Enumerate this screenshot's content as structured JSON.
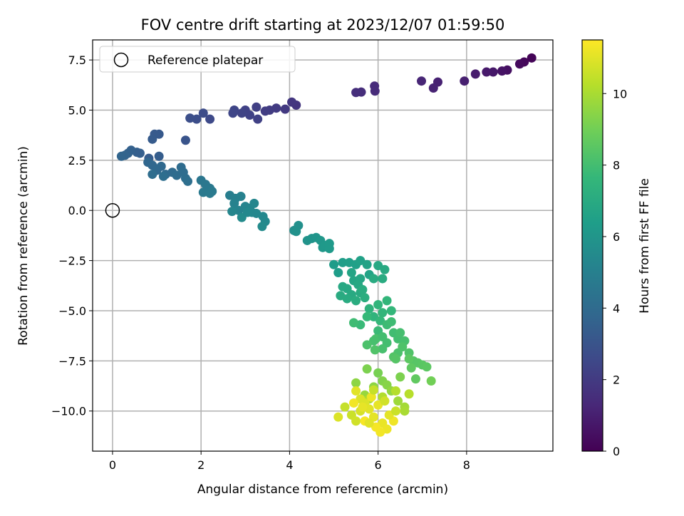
{
  "chart_data": {
    "type": "scatter",
    "title": "FOV centre drift starting at 2023/12/07 01:59:50",
    "xlabel": "Angular distance from reference (arcmin)",
    "ylabel": "Rotation from reference (arcmin)",
    "xlim": [
      -0.45,
      9.95
    ],
    "ylim": [
      -12.0,
      8.5
    ],
    "xticks": [
      0,
      2,
      4,
      6,
      8
    ],
    "xtick_labels": [
      "0",
      "2",
      "4",
      "6",
      "8"
    ],
    "yticks": [
      7.5,
      5.0,
      2.5,
      0.0,
      -2.5,
      -5.0,
      -7.5,
      -10.0
    ],
    "ytick_labels": [
      "7.5",
      "5.0",
      "2.5",
      "0.0",
      "−2.5",
      "−5.0",
      "−7.5",
      "−10.0"
    ],
    "grid": true,
    "legend": {
      "position": "top-left",
      "entries": [
        "Reference platepar"
      ]
    },
    "reference_point": {
      "x": 0.0,
      "y": 0.0,
      "label": "Reference platepar",
      "marker": "open-circle"
    },
    "colorbar": {
      "label": "Hours from first FF file",
      "colormap": "viridis",
      "range": [
        0,
        11.5
      ],
      "ticks": [
        0,
        2,
        4,
        6,
        8,
        10
      ],
      "tick_labels": [
        "0",
        "2",
        "4",
        "6",
        "8",
        "10"
      ]
    },
    "colormap_stops": [
      "#440154",
      "#482878",
      "#3e4989",
      "#31688e",
      "#26828e",
      "#1f9e89",
      "#35b779",
      "#6ece58",
      "#b5de2b",
      "#fde725"
    ],
    "points": [
      [
        9.47,
        7.6,
        0.1
      ],
      [
        9.3,
        7.4,
        0.2
      ],
      [
        9.2,
        7.3,
        0.3
      ],
      [
        8.92,
        7.0,
        0.5
      ],
      [
        8.8,
        6.95,
        0.6
      ],
      [
        8.6,
        6.9,
        0.75
      ],
      [
        8.45,
        6.9,
        0.8
      ],
      [
        8.2,
        6.8,
        0.9
      ],
      [
        7.95,
        6.45,
        1.0
      ],
      [
        7.35,
        6.4,
        1.05
      ],
      [
        7.25,
        6.1,
        1.1
      ],
      [
        6.98,
        6.45,
        1.2
      ],
      [
        5.92,
        6.2,
        1.4
      ],
      [
        5.93,
        5.95,
        1.45
      ],
      [
        5.62,
        5.9,
        1.5
      ],
      [
        5.5,
        5.88,
        1.55
      ],
      [
        4.15,
        5.25,
        1.8
      ],
      [
        4.05,
        5.4,
        1.85
      ],
      [
        3.9,
        5.05,
        1.95
      ],
      [
        3.7,
        5.1,
        2.0
      ],
      [
        3.55,
        5.0,
        2.05
      ],
      [
        3.45,
        4.95,
        2.1
      ],
      [
        3.25,
        5.15,
        2.2
      ],
      [
        3.28,
        4.55,
        2.25
      ],
      [
        3.1,
        4.75,
        2.3
      ],
      [
        3.0,
        5.0,
        2.3
      ],
      [
        2.92,
        4.85,
        2.35
      ],
      [
        2.75,
        5.0,
        2.4
      ],
      [
        2.72,
        4.85,
        2.45
      ],
      [
        2.2,
        4.55,
        2.6
      ],
      [
        2.05,
        4.85,
        2.7
      ],
      [
        1.9,
        4.55,
        2.75
      ],
      [
        1.75,
        4.6,
        2.8
      ],
      [
        1.65,
        3.5,
        3.0
      ],
      [
        1.05,
        3.8,
        3.2
      ],
      [
        0.95,
        3.8,
        3.25
      ],
      [
        0.9,
        3.55,
        3.3
      ],
      [
        0.82,
        2.6,
        3.35
      ],
      [
        1.05,
        2.7,
        3.4
      ],
      [
        0.55,
        2.9,
        3.5
      ],
      [
        0.42,
        3.0,
        3.55
      ],
      [
        0.35,
        2.85,
        3.6
      ],
      [
        0.28,
        2.75,
        3.65
      ],
      [
        0.2,
        2.7,
        3.7
      ],
      [
        0.62,
        2.85,
        3.45
      ],
      [
        0.8,
        2.4,
        3.8
      ],
      [
        0.9,
        2.25,
        3.85
      ],
      [
        1.1,
        2.2,
        3.9
      ],
      [
        1.0,
        2.0,
        3.9
      ],
      [
        1.2,
        1.8,
        3.95
      ],
      [
        1.35,
        1.9,
        4.0
      ],
      [
        1.45,
        1.75,
        4.05
      ],
      [
        1.55,
        2.15,
        4.05
      ],
      [
        1.6,
        1.9,
        4.1
      ],
      [
        1.65,
        1.6,
        4.15
      ],
      [
        1.7,
        1.45,
        4.2
      ],
      [
        0.9,
        1.8,
        4.1
      ],
      [
        1.15,
        1.7,
        4.15
      ],
      [
        2.0,
        1.5,
        4.5
      ],
      [
        2.1,
        1.3,
        4.55
      ],
      [
        2.2,
        1.1,
        4.6
      ],
      [
        2.05,
        0.9,
        4.65
      ],
      [
        2.2,
        0.85,
        4.7
      ],
      [
        2.25,
        0.95,
        4.7
      ],
      [
        2.65,
        0.75,
        4.9
      ],
      [
        2.78,
        0.6,
        5.0
      ],
      [
        2.9,
        0.7,
        5.05
      ],
      [
        2.75,
        0.35,
        5.1
      ],
      [
        2.85,
        0.0,
        5.15
      ],
      [
        3.0,
        0.2,
        5.2
      ],
      [
        3.1,
        0.1,
        5.25
      ],
      [
        3.2,
        0.35,
        5.3
      ],
      [
        3.25,
        -0.15,
        5.35
      ],
      [
        3.15,
        -0.1,
        5.35
      ],
      [
        3.4,
        -0.3,
        5.4
      ],
      [
        3.45,
        -0.55,
        5.45
      ],
      [
        3.38,
        -0.8,
        5.5
      ],
      [
        2.92,
        -0.35,
        5.5
      ],
      [
        3.05,
        -0.1,
        5.4
      ],
      [
        2.7,
        -0.05,
        5.3
      ],
      [
        4.1,
        -1.0,
        5.7
      ],
      [
        4.2,
        -0.75,
        5.75
      ],
      [
        4.15,
        -1.05,
        5.8
      ],
      [
        4.4,
        -1.5,
        5.9
      ],
      [
        4.5,
        -1.4,
        5.95
      ],
      [
        4.6,
        -1.35,
        6.0
      ],
      [
        4.7,
        -1.5,
        6.05
      ],
      [
        4.75,
        -1.85,
        6.1
      ],
      [
        4.8,
        -1.75,
        6.15
      ],
      [
        4.9,
        -1.65,
        6.2
      ],
      [
        4.9,
        -1.9,
        6.2
      ],
      [
        5.0,
        -2.7,
        6.3
      ],
      [
        5.1,
        -3.1,
        6.35
      ],
      [
        5.2,
        -2.6,
        6.4
      ],
      [
        5.35,
        -2.6,
        6.45
      ],
      [
        5.5,
        -2.7,
        6.5
      ],
      [
        5.6,
        -2.5,
        6.55
      ],
      [
        5.75,
        -2.7,
        6.6
      ],
      [
        5.8,
        -3.2,
        6.65
      ],
      [
        5.4,
        -3.1,
        6.7
      ],
      [
        5.45,
        -3.5,
        6.75
      ],
      [
        5.6,
        -3.4,
        6.8
      ],
      [
        5.55,
        -3.7,
        6.85
      ],
      [
        5.3,
        -3.9,
        6.9
      ],
      [
        5.4,
        -4.2,
        6.95
      ],
      [
        5.6,
        -4.1,
        7.0
      ],
      [
        5.15,
        -4.25,
        7.0
      ],
      [
        5.3,
        -4.4,
        7.05
      ],
      [
        5.5,
        -4.5,
        7.1
      ],
      [
        5.7,
        -4.35,
        7.15
      ],
      [
        5.65,
        -3.95,
        7.1
      ],
      [
        5.9,
        -3.4,
        7.0
      ],
      [
        6.0,
        -2.75,
        6.9
      ],
      [
        6.15,
        -2.95,
        6.95
      ],
      [
        6.1,
        -3.4,
        7.05
      ],
      [
        5.2,
        -3.8,
        6.9
      ],
      [
        5.8,
        -4.9,
        7.4
      ],
      [
        5.9,
        -5.3,
        7.45
      ],
      [
        6.0,
        -4.7,
        7.5
      ],
      [
        6.1,
        -5.1,
        7.55
      ],
      [
        6.2,
        -4.5,
        7.55
      ],
      [
        6.3,
        -5.0,
        7.6
      ],
      [
        6.05,
        -5.5,
        7.65
      ],
      [
        5.75,
        -5.3,
        7.7
      ],
      [
        5.6,
        -5.7,
        7.75
      ],
      [
        6.0,
        -6.0,
        7.8
      ],
      [
        6.2,
        -5.7,
        7.85
      ],
      [
        6.3,
        -5.55,
        7.9
      ],
      [
        6.35,
        -6.1,
        7.95
      ],
      [
        6.45,
        -6.4,
        8.0
      ],
      [
        6.5,
        -6.1,
        8.05
      ],
      [
        6.6,
        -6.5,
        8.1
      ],
      [
        6.2,
        -6.6,
        8.0
      ],
      [
        6.1,
        -6.9,
        8.1
      ],
      [
        5.95,
        -6.4,
        8.15
      ],
      [
        6.45,
        -7.1,
        8.2
      ],
      [
        6.55,
        -6.8,
        8.25
      ],
      [
        6.7,
        -7.1,
        8.3
      ],
      [
        6.35,
        -7.3,
        8.35
      ],
      [
        6.8,
        -7.5,
        8.4
      ],
      [
        6.9,
        -7.6,
        8.45
      ],
      [
        7.0,
        -7.7,
        8.5
      ],
      [
        7.1,
        -7.8,
        8.55
      ],
      [
        6.75,
        -7.85,
        8.6
      ],
      [
        6.85,
        -8.4,
        8.65
      ],
      [
        6.7,
        -7.4,
        8.55
      ],
      [
        6.4,
        -7.4,
        8.4
      ],
      [
        5.9,
        -6.5,
        8.1
      ],
      [
        5.93,
        -6.95,
        8.3
      ],
      [
        5.75,
        -6.7,
        8.2
      ],
      [
        5.45,
        -5.6,
        7.9
      ],
      [
        6.1,
        -6.3,
        8.0
      ],
      [
        6.0,
        -8.1,
        9.1
      ],
      [
        5.75,
        -7.9,
        9.2
      ],
      [
        6.1,
        -8.5,
        9.3
      ],
      [
        5.9,
        -8.8,
        9.5
      ],
      [
        6.2,
        -8.7,
        9.4
      ],
      [
        6.3,
        -9.0,
        9.6
      ],
      [
        5.5,
        -8.6,
        9.5
      ],
      [
        5.7,
        -9.2,
        9.7
      ],
      [
        6.45,
        -9.5,
        9.8
      ],
      [
        6.6,
        -9.8,
        9.9
      ],
      [
        6.6,
        -10.0,
        10.0
      ],
      [
        5.8,
        -9.4,
        10.1
      ],
      [
        6.1,
        -9.3,
        10.15
      ],
      [
        6.4,
        -9.0,
        10.2
      ],
      [
        6.7,
        -9.15,
        10.25
      ],
      [
        7.2,
        -8.5,
        9.0
      ],
      [
        6.5,
        -8.3,
        9.2
      ],
      [
        5.25,
        -9.8,
        10.5
      ],
      [
        5.4,
        -10.2,
        10.6
      ],
      [
        5.5,
        -10.5,
        10.7
      ],
      [
        5.6,
        -10.0,
        10.8
      ],
      [
        5.7,
        -9.6,
        10.9
      ],
      [
        5.8,
        -9.9,
        11.0
      ],
      [
        5.9,
        -10.3,
        11.05
      ],
      [
        6.0,
        -9.7,
        11.1
      ],
      [
        6.1,
        -10.6,
        11.15
      ],
      [
        6.2,
        -10.9,
        11.2
      ],
      [
        6.35,
        -10.5,
        11.25
      ],
      [
        6.05,
        -11.05,
        11.3
      ],
      [
        5.95,
        -10.8,
        11.35
      ],
      [
        5.7,
        -10.5,
        11.4
      ],
      [
        5.5,
        -9.0,
        11.0
      ],
      [
        5.6,
        -9.4,
        10.9
      ],
      [
        5.65,
        -9.8,
        11.1
      ],
      [
        5.85,
        -9.3,
        11.2
      ],
      [
        5.45,
        -9.6,
        11.3
      ],
      [
        5.1,
        -10.3,
        10.9
      ],
      [
        5.8,
        -10.6,
        11.0
      ],
      [
        6.25,
        -10.2,
        11.05
      ],
      [
        6.4,
        -10.0,
        10.6
      ],
      [
        5.9,
        -8.95,
        10.5
      ],
      [
        6.15,
        -9.5,
        10.7
      ]
    ]
  }
}
